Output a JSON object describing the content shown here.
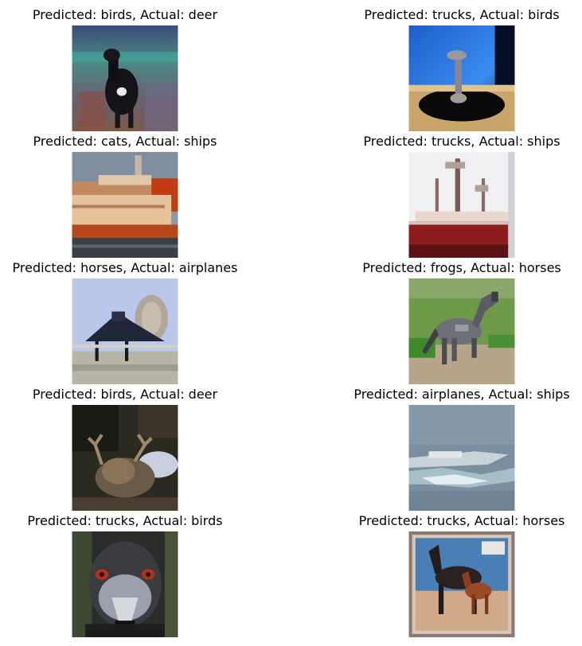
{
  "figure": {
    "images": [
      {
        "title": "Predicted: birds, Actual: deer",
        "subject": "deer-photo"
      },
      {
        "title": "Predicted: trucks, Actual: birds",
        "subject": "ostrich-photo"
      },
      {
        "title": "Predicted: cats, Actual: ships",
        "subject": "ship-photo"
      },
      {
        "title": "Predicted: trucks, Actual: ships",
        "subject": "red-hull-ship-photo"
      },
      {
        "title": "Predicted: horses, Actual: airplanes",
        "subject": "dark-airplane-photo"
      },
      {
        "title": "Predicted: frogs, Actual: horses",
        "subject": "gray-horse-photo"
      },
      {
        "title": "Predicted: birds, Actual: deer",
        "subject": "deer-antlers-photo"
      },
      {
        "title": "Predicted: airplanes, Actual: ships",
        "subject": "ship-on-water-photo"
      },
      {
        "title": "Predicted: trucks, Actual: birds",
        "subject": "emu-face-photo"
      },
      {
        "title": "Predicted: trucks, Actual: horses",
        "subject": "horses-stamp-photo"
      }
    ]
  }
}
